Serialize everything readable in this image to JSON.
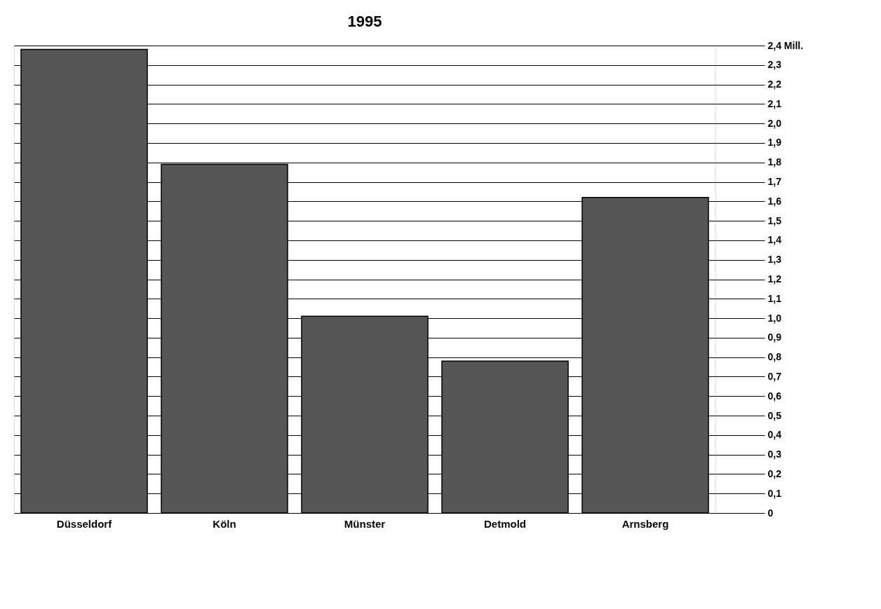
{
  "chart_data": {
    "type": "bar",
    "title": "1995",
    "categories": [
      "Düsseldorf",
      "Köln",
      "Münster",
      "Detmold",
      "Arnsberg"
    ],
    "values": [
      2.38,
      1.79,
      1.01,
      0.78,
      1.62
    ],
    "color": "#555555",
    "ylim": [
      0,
      2.4
    ],
    "yticks": [
      0,
      {
        "value": 0.1,
        "label": "0,1"
      },
      {
        "value": 0.2,
        "label": "0,2"
      },
      {
        "value": 0.3,
        "label": "0,3"
      },
      {
        "value": 0.4,
        "label": "0,4"
      },
      {
        "value": 0.5,
        "label": "0,5"
      },
      {
        "value": 0.6,
        "label": "0,6"
      },
      {
        "value": 0.7,
        "label": "0,7"
      },
      {
        "value": 0.8,
        "label": "0,8"
      },
      {
        "value": 0.9,
        "label": "0,9"
      },
      {
        "value": 1.0,
        "label": "1,0"
      },
      {
        "value": 1.1,
        "label": "1,1"
      },
      {
        "value": 1.2,
        "label": "1,2"
      },
      {
        "value": 1.3,
        "label": "1,3"
      },
      {
        "value": 1.4,
        "label": "1,4"
      },
      {
        "value": 1.5,
        "label": "1,5"
      },
      {
        "value": 1.6,
        "label": "1,6"
      },
      {
        "value": 1.7,
        "label": "1,7"
      },
      {
        "value": 1.8,
        "label": "1,8"
      },
      {
        "value": 1.9,
        "label": "1,9"
      },
      {
        "value": 2.0,
        "label": "2,0"
      },
      {
        "value": 2.1,
        "label": "2,1"
      },
      {
        "value": 2.2,
        "label": "2,2"
      },
      {
        "value": 2.3,
        "label": "2,3"
      },
      {
        "value": 2.4,
        "label": "2,4 Mill."
      }
    ],
    "grid": "y"
  }
}
